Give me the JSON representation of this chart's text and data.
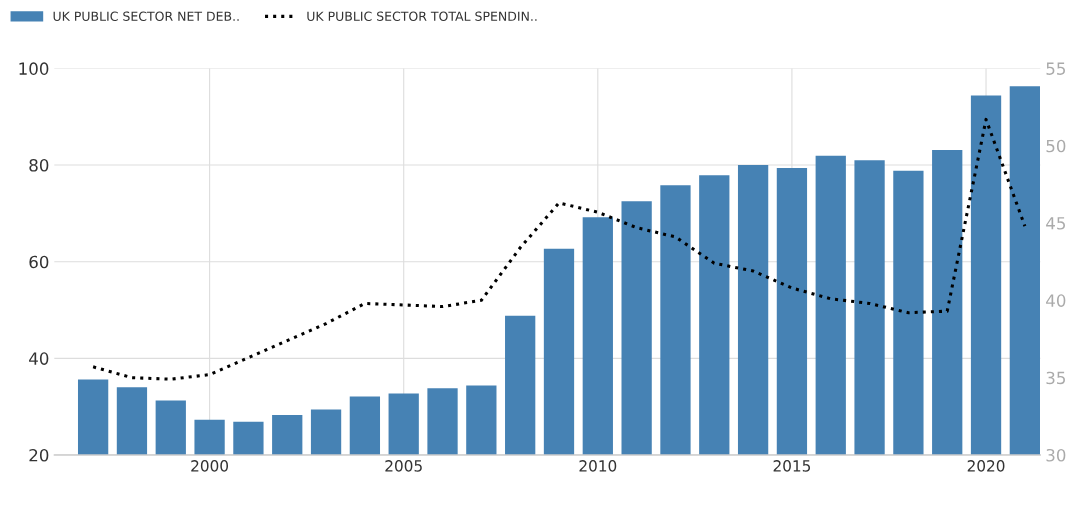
{
  "chart_data": {
    "type": "bar",
    "x": [
      1997,
      1998,
      1999,
      2000,
      2001,
      2002,
      2003,
      2004,
      2005,
      2006,
      2007,
      2008,
      2009,
      2010,
      2011,
      2012,
      2013,
      2014,
      2015,
      2016,
      2017,
      2018,
      2019,
      2020,
      2021
    ],
    "series": [
      {
        "name": "UK PUBLIC SECTOR NET DEB..",
        "color": "#4682b4",
        "values": [
          35.6,
          34.0,
          31.3,
          27.3,
          26.9,
          28.3,
          29.4,
          32.1,
          32.7,
          33.8,
          34.4,
          48.8,
          62.7,
          69.2,
          72.5,
          75.8,
          77.9,
          80.0,
          79.4,
          81.9,
          81.0,
          78.8,
          83.1,
          94.4,
          96.3
        ]
      },
      {
        "name": "UK PUBLIC SECTOR TOTAL SPENDIN..",
        "type": "line",
        "axis": "y2",
        "color": "#000000",
        "line_style": "dotted",
        "values": [
          35.7,
          35.0,
          34.9,
          35.2,
          36.3,
          37.4,
          38.5,
          39.8,
          39.7,
          39.6,
          40.0,
          43.4,
          46.3,
          45.7,
          44.7,
          44.1,
          42.4,
          41.9,
          40.8,
          40.1,
          39.8,
          39.2,
          39.3,
          51.7,
          44.8
        ]
      }
    ],
    "xlim": [
      1996,
      2021.4
    ],
    "xticks": [
      2000,
      2005,
      2010,
      2015,
      2020
    ],
    "ylim": [
      20,
      100
    ],
    "yticks": [
      20,
      40,
      60,
      80,
      100
    ],
    "y2lim": [
      30,
      55
    ],
    "y2ticks": [
      30,
      35,
      40,
      45,
      50,
      55
    ],
    "grid": true,
    "legend": "top left"
  }
}
